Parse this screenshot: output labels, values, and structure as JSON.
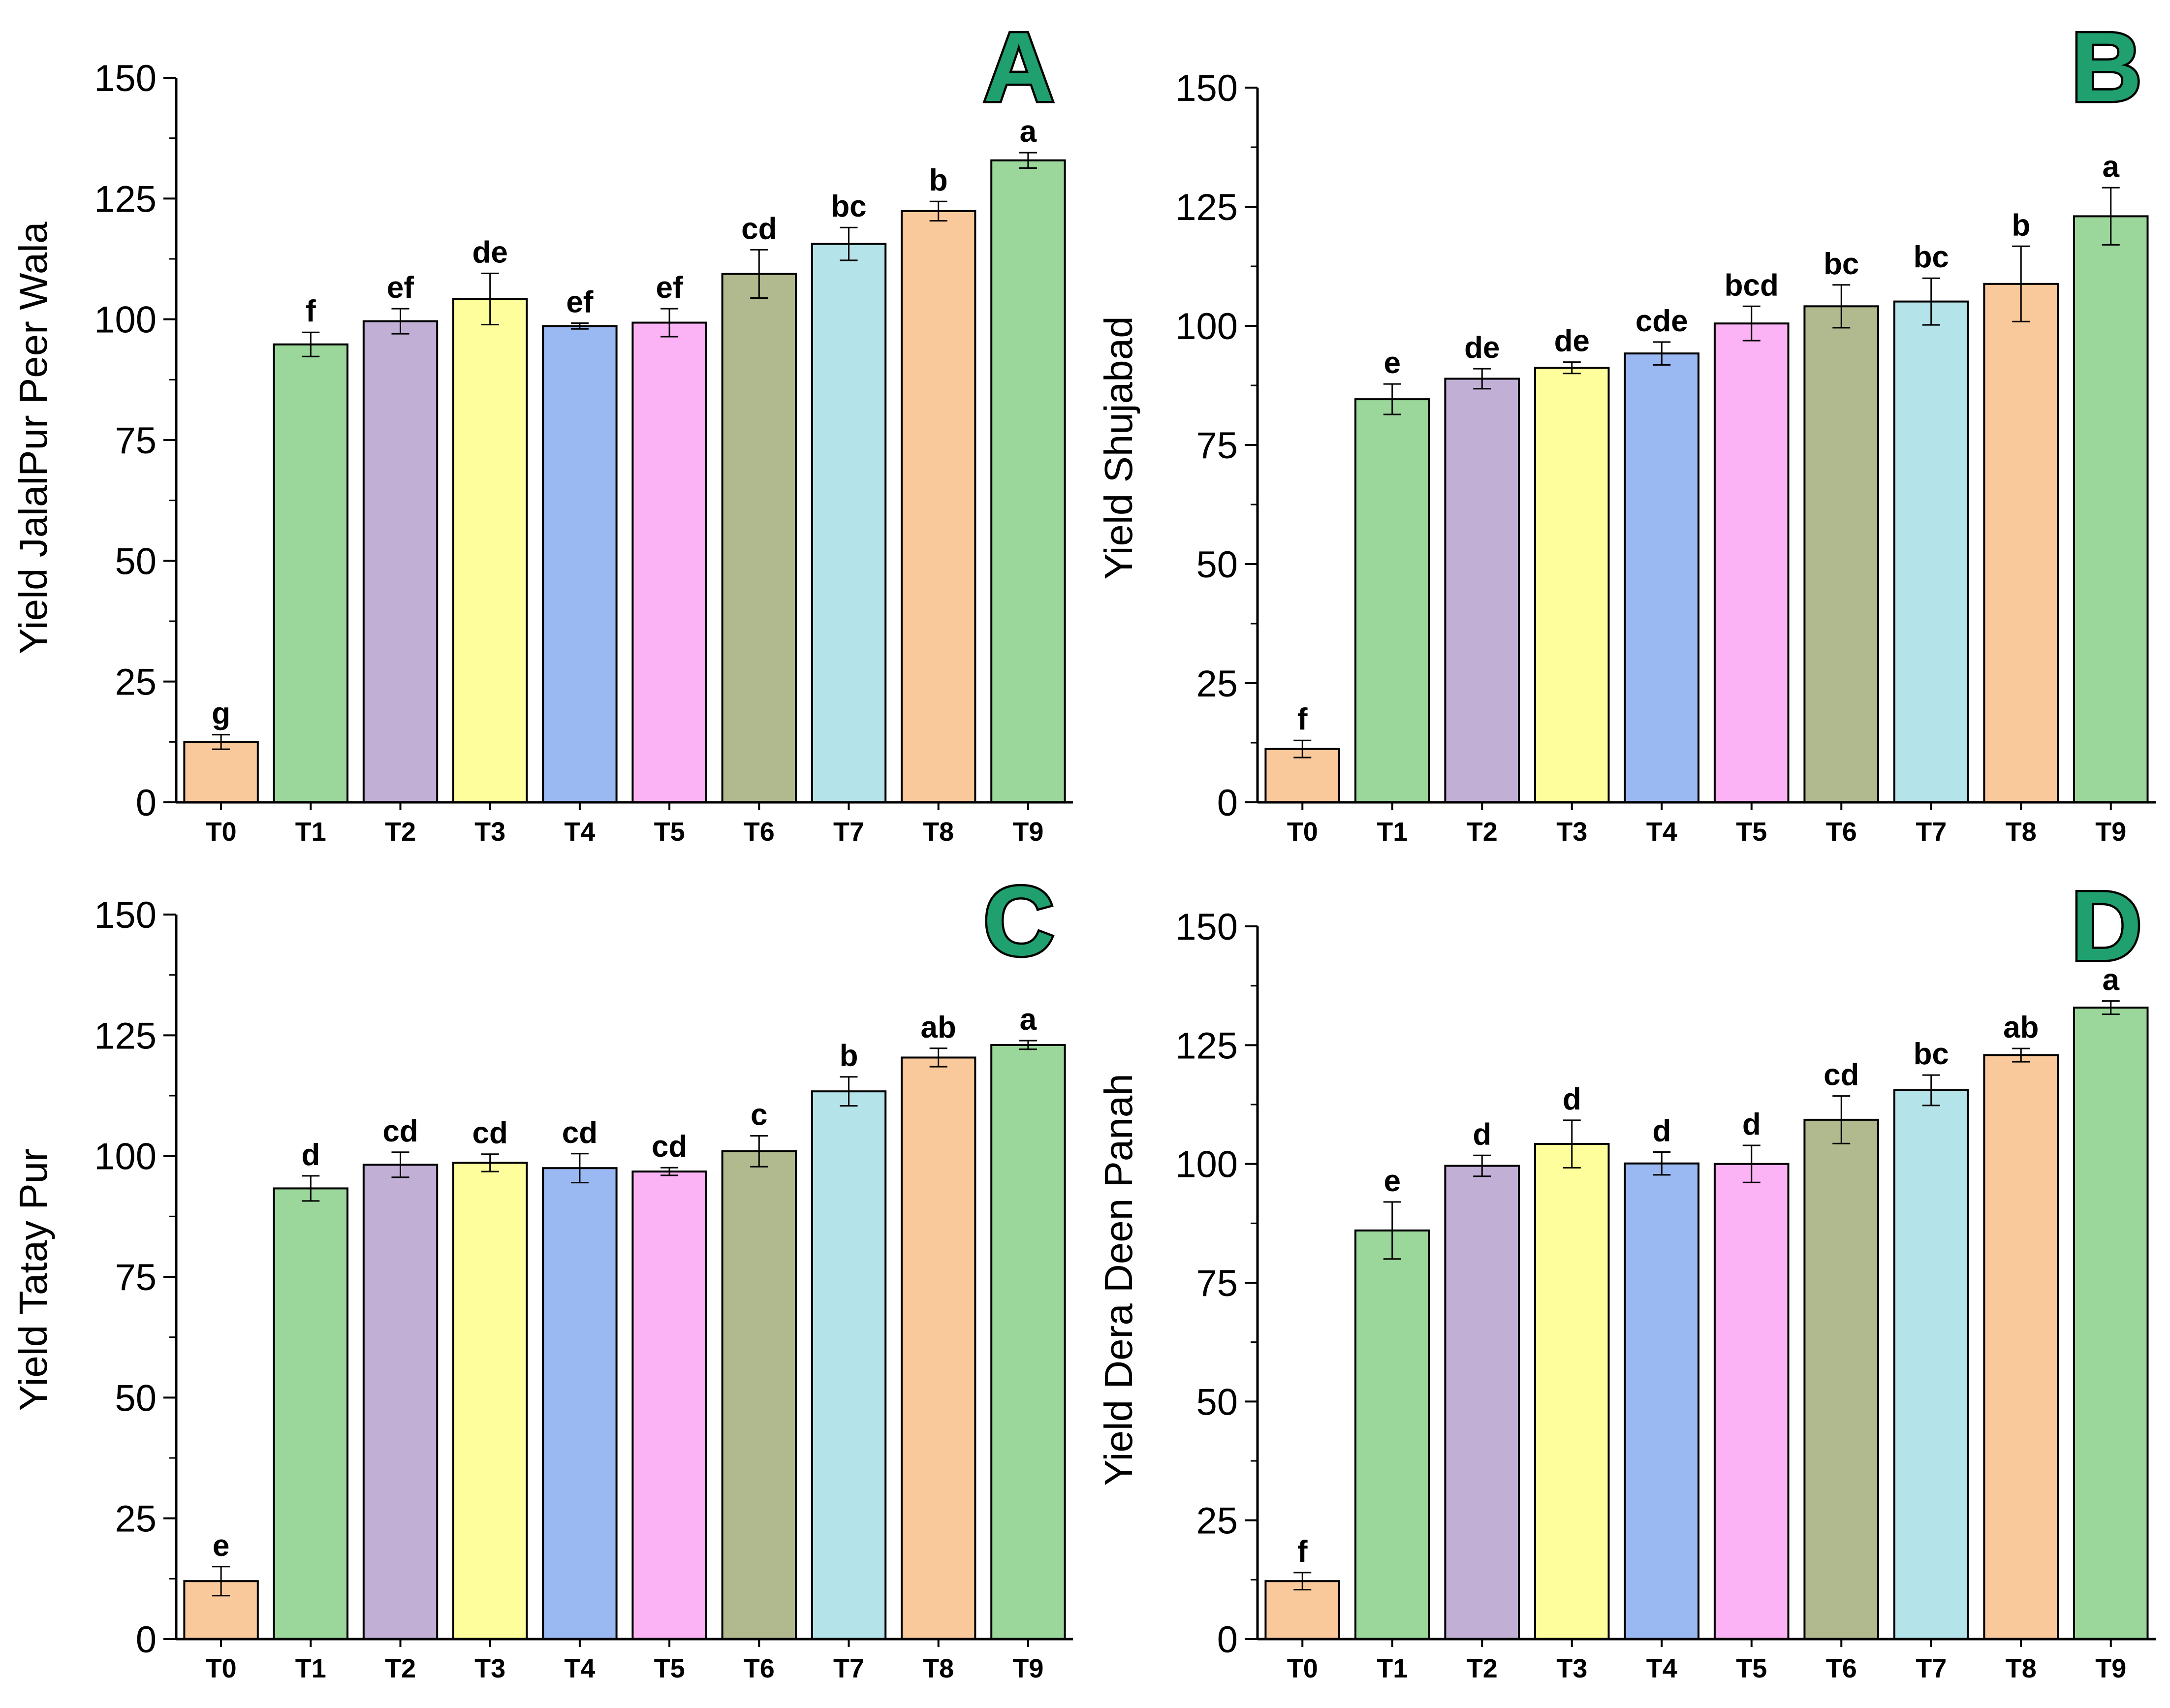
{
  "figure": {
    "panel_color": "#1fa06e"
  },
  "bar_colors": [
    "#f9c89b",
    "#9bd79a",
    "#c2afd6",
    "#fefe9c",
    "#9ab9f2",
    "#fcb3f5",
    "#b1b98e",
    "#b4e3ea",
    "#f9c89b",
    "#9bd79a"
  ],
  "chart_data": [
    {
      "panel": "A",
      "type": "bar",
      "categories": [
        "T0",
        "T1",
        "T2",
        "T3",
        "T4",
        "T5",
        "T6",
        "T7",
        "T8",
        "T9"
      ],
      "values": [
        12.5,
        94.8,
        99.6,
        104.2,
        98.6,
        99.3,
        109.4,
        115.6,
        122.4,
        132.9
      ],
      "errors": [
        1.5,
        2.5,
        2.6,
        5.3,
        0.6,
        2.9,
        5.0,
        3.4,
        2.0,
        1.6
      ],
      "significance": [
        "g",
        "f",
        "ef",
        "de",
        "ef",
        "ef",
        "cd",
        "bc",
        "b",
        "a"
      ],
      "ylabel": "Yield JalalPur Peer Wala",
      "ylim": [
        0,
        150
      ],
      "yticks": [
        "0",
        "25",
        "50",
        "75",
        "100",
        "125",
        "150"
      ]
    },
    {
      "panel": "B",
      "type": "bar",
      "categories": [
        "T0",
        "T1",
        "T2",
        "T3",
        "T4",
        "T5",
        "T6",
        "T7",
        "T8",
        "T9"
      ],
      "values": [
        11.2,
        84.6,
        88.9,
        91.2,
        94.2,
        100.5,
        104.1,
        105.1,
        108.8,
        123.0
      ],
      "errors": [
        1.8,
        3.2,
        2.1,
        1.2,
        2.4,
        3.6,
        4.5,
        4.9,
        7.9,
        6.0
      ],
      "significance": [
        "f",
        "e",
        "de",
        "de",
        "cde",
        "bcd",
        "bc",
        "bc",
        "b",
        "a"
      ],
      "ylabel": "Yield Shujabad",
      "ylim": [
        0,
        150
      ],
      "yticks": [
        "0",
        "25",
        "50",
        "75",
        "100",
        "125",
        "150"
      ]
    },
    {
      "panel": "C",
      "type": "bar",
      "categories": [
        "T0",
        "T1",
        "T2",
        "T3",
        "T4",
        "T5",
        "T6",
        "T7",
        "T8",
        "T9"
      ],
      "values": [
        12.0,
        93.3,
        98.2,
        98.6,
        97.5,
        96.8,
        101.0,
        113.4,
        120.4,
        123.0
      ],
      "errors": [
        3.0,
        2.6,
        2.6,
        1.8,
        3.0,
        0.8,
        3.2,
        3.0,
        1.9,
        0.9
      ],
      "significance": [
        "e",
        "d",
        "cd",
        "cd",
        "cd",
        "cd",
        "c",
        "b",
        "ab",
        "a"
      ],
      "ylabel": "Yield Tatay Pur",
      "ylim": [
        0,
        150
      ],
      "yticks": [
        "0",
        "25",
        "50",
        "75",
        "100",
        "125",
        "150"
      ]
    },
    {
      "panel": "D",
      "type": "bar",
      "categories": [
        "T0",
        "T1",
        "T2",
        "T3",
        "T4",
        "T5",
        "T6",
        "T7",
        "T8",
        "T9"
      ],
      "values": [
        12.2,
        86.0,
        99.6,
        104.2,
        100.1,
        100.0,
        109.3,
        115.5,
        122.9,
        132.9
      ],
      "errors": [
        1.8,
        6.0,
        2.2,
        5.0,
        2.4,
        3.9,
        5.0,
        3.2,
        1.4,
        1.4
      ],
      "significance": [
        "f",
        "e",
        "d",
        "d",
        "d",
        "d",
        "cd",
        "bc",
        "ab",
        "a"
      ],
      "ylabel": "Yield  Dera Deen Panah",
      "ylim": [
        0,
        150
      ],
      "yticks": [
        "0",
        "25",
        "50",
        "75",
        "100",
        "125",
        "150"
      ]
    }
  ]
}
